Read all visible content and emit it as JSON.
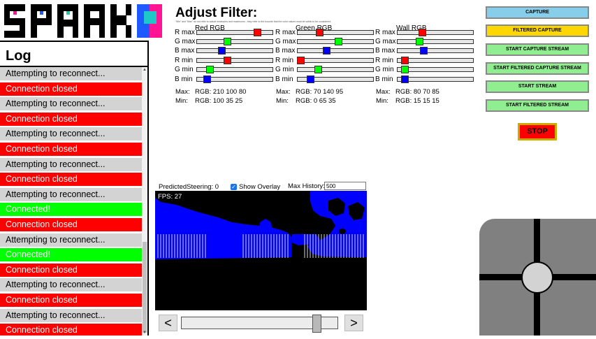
{
  "app": {
    "logo_text": "SPARK"
  },
  "log": {
    "title": "Log",
    "entries": [
      {
        "text": "Attempting to reconnect...",
        "status": "gray"
      },
      {
        "text": "Connection closed",
        "status": "red"
      },
      {
        "text": "Attempting to reconnect...",
        "status": "gray"
      },
      {
        "text": "Connection closed",
        "status": "red"
      },
      {
        "text": "Attempting to reconnect...",
        "status": "gray"
      },
      {
        "text": "Connection closed",
        "status": "red"
      },
      {
        "text": "Attempting to reconnect...",
        "status": "gray"
      },
      {
        "text": "Connection closed",
        "status": "red"
      },
      {
        "text": "Attempting to reconnect...",
        "status": "gray"
      },
      {
        "text": "Connected!",
        "status": "green"
      },
      {
        "text": "Connection closed",
        "status": "red"
      },
      {
        "text": "Attempting to reconnect...",
        "status": "gray"
      },
      {
        "text": "Connected!",
        "status": "green"
      },
      {
        "text": "Connection closed",
        "status": "red"
      },
      {
        "text": "Attempting to reconnect...",
        "status": "gray"
      },
      {
        "text": "Connection closed",
        "status": "red"
      },
      {
        "text": "Attempting to reconnect...",
        "status": "gray"
      },
      {
        "text": "Connection closed",
        "status": "red"
      }
    ]
  },
  "filter": {
    "title": "Adjust Filter:",
    "note": "\"Min\" and \"Max\" do not refer to actual minimums and maximums - they refer to the bounds that the color values must be within to be considered.",
    "max_label": "Max:",
    "min_label": "Min:",
    "groups": [
      {
        "title": "Red RGB",
        "max": "RGB: 210 100 80",
        "min": "RGB: 100 35 25",
        "sliders": [
          {
            "label": "R max",
            "value": 210,
            "color": "#ff0000"
          },
          {
            "label": "G max",
            "value": 100,
            "color": "#00ff00"
          },
          {
            "label": "B max",
            "value": 80,
            "color": "#0000ff"
          },
          {
            "label": "R min",
            "value": 100,
            "color": "#ff0000"
          },
          {
            "label": "G min",
            "value": 35,
            "color": "#00ff00"
          },
          {
            "label": "B min",
            "value": 25,
            "color": "#0000ff"
          }
        ]
      },
      {
        "title": "Green RGB",
        "max": "RGB: 70 140 95",
        "min": "RGB: 0 65 35",
        "sliders": [
          {
            "label": "R max",
            "value": 70,
            "color": "#ff0000"
          },
          {
            "label": "G max",
            "value": 140,
            "color": "#00ff00"
          },
          {
            "label": "B max",
            "value": 95,
            "color": "#0000ff"
          },
          {
            "label": "R min",
            "value": 0,
            "color": "#ff0000"
          },
          {
            "label": "G min",
            "value": 65,
            "color": "#00ff00"
          },
          {
            "label": "B min",
            "value": 35,
            "color": "#0000ff"
          }
        ]
      },
      {
        "title": "Wall RGB",
        "max": "RGB: 80 70 85",
        "min": "RGB: 15 15 15",
        "sliders": [
          {
            "label": "R max",
            "value": 80,
            "color": "#ff0000"
          },
          {
            "label": "G max",
            "value": 70,
            "color": "#00ff00"
          },
          {
            "label": "B max",
            "value": 85,
            "color": "#0000ff"
          },
          {
            "label": "R min",
            "value": 15,
            "color": "#ff0000"
          },
          {
            "label": "G min",
            "value": 15,
            "color": "#00ff00"
          },
          {
            "label": "B min",
            "value": 15,
            "color": "#0000ff"
          }
        ]
      }
    ]
  },
  "controls": {
    "capture": "CAPTURE",
    "filtered_capture": "FILTERED CAPTURE",
    "start_capture_stream": "START CAPTURE STREAM",
    "start_filtered_capture_stream": "START FILTERED CAPTURE STREAM",
    "start_stream": "START STREAM",
    "start_filtered_stream": "START FILTERED STREAM",
    "stop": "STOP"
  },
  "video": {
    "predicted_steering": "PredictedSteering: 0",
    "show_overlay_label": "Show Overlay",
    "show_overlay_checked": true,
    "max_history_label": "Max History:",
    "max_history_value": "500",
    "fps": "FPS: 27",
    "prev": "<",
    "next": ">",
    "frame_position": 0.88
  }
}
